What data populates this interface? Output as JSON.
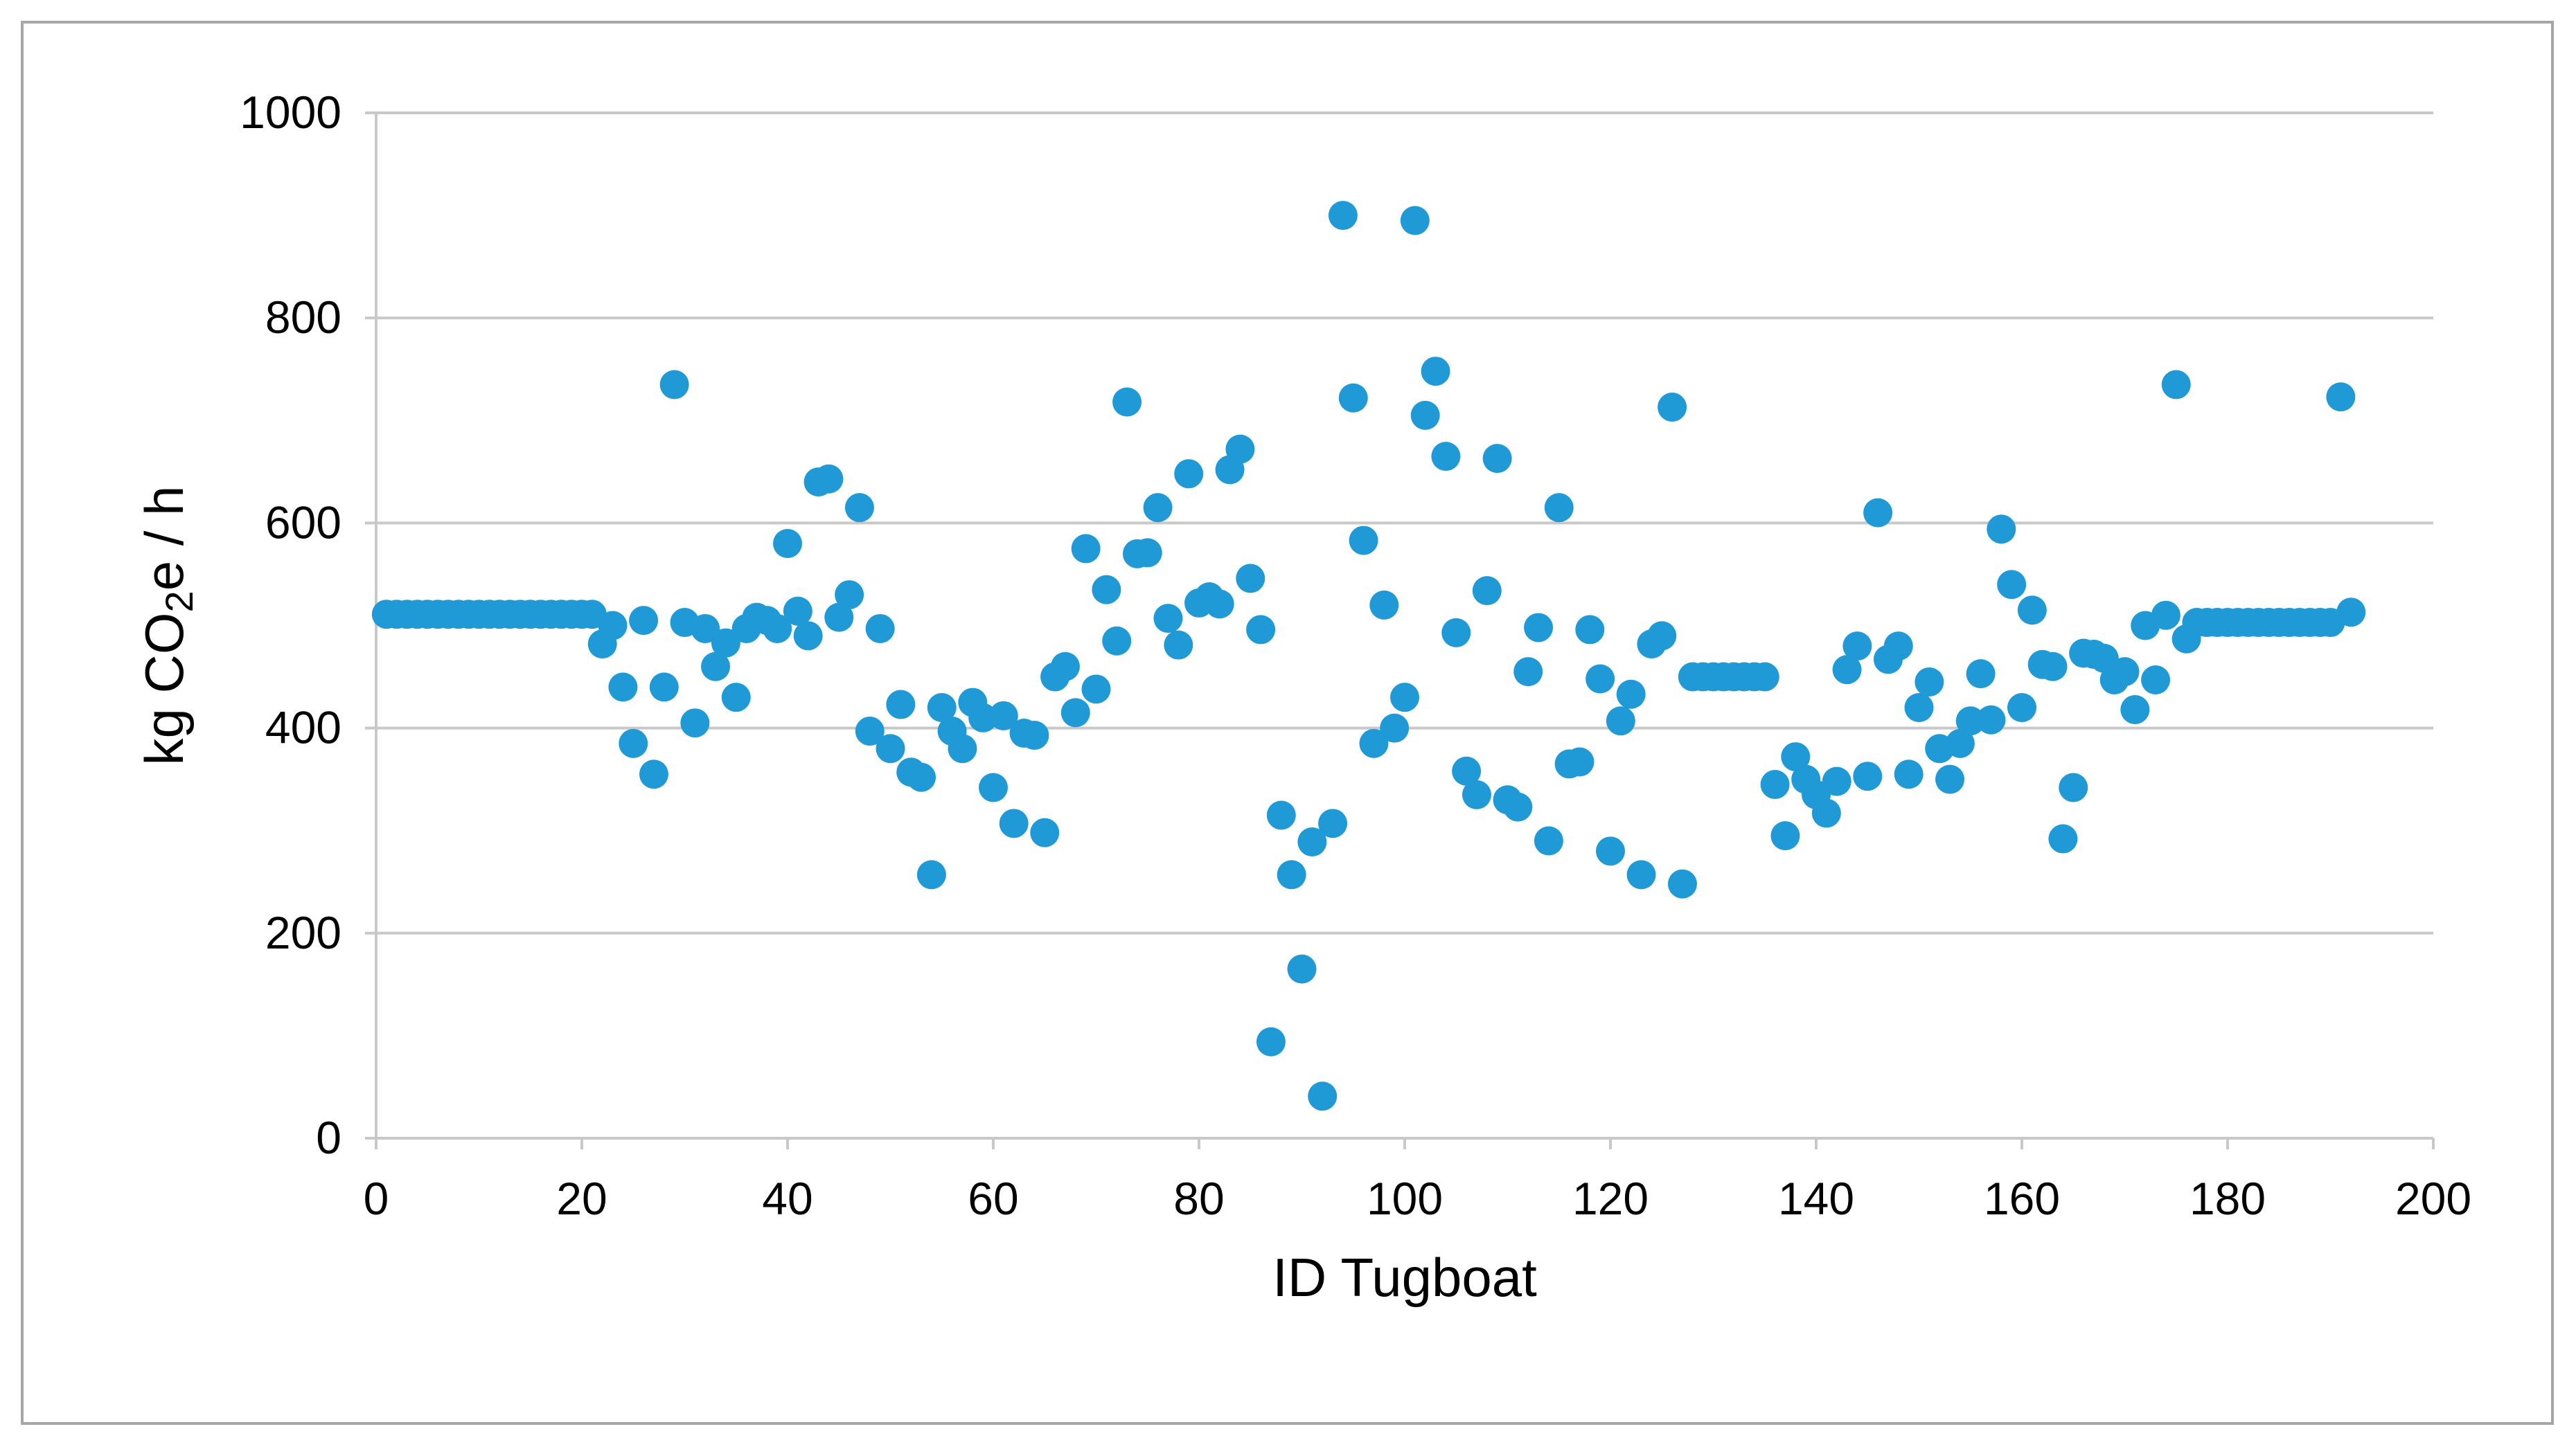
{
  "chart_data": {
    "type": "scatter",
    "title": "",
    "xlabel": "ID Tugboat",
    "ylabel_parts": {
      "prefix": "kg CO",
      "subscript": "2",
      "suffix": "e / h"
    },
    "xlim": [
      0,
      200
    ],
    "ylim": [
      0,
      1000
    ],
    "xticks": [
      0,
      20,
      40,
      60,
      80,
      100,
      120,
      140,
      160,
      180,
      200
    ],
    "yticks": [
      0,
      200,
      400,
      600,
      800,
      1000
    ],
    "grid": "horizontal",
    "legend": "none",
    "marker_color": "#1f9ad6",
    "series": [
      {
        "points": [
          [
            1,
            511
          ],
          [
            2,
            511
          ],
          [
            3,
            511
          ],
          [
            4,
            511
          ],
          [
            5,
            511
          ],
          [
            6,
            511
          ],
          [
            7,
            511
          ],
          [
            8,
            511
          ],
          [
            9,
            511
          ],
          [
            10,
            511
          ],
          [
            11,
            511
          ],
          [
            12,
            511
          ],
          [
            13,
            511
          ],
          [
            14,
            511
          ],
          [
            15,
            511
          ],
          [
            16,
            511
          ],
          [
            17,
            511
          ],
          [
            18,
            511
          ],
          [
            19,
            511
          ],
          [
            20,
            511
          ],
          [
            21,
            511
          ],
          [
            22,
            482
          ],
          [
            23,
            500
          ],
          [
            24,
            440
          ],
          [
            25,
            385
          ],
          [
            26,
            505
          ],
          [
            27,
            355
          ],
          [
            28,
            440
          ],
          [
            29,
            735
          ],
          [
            30,
            503
          ],
          [
            31,
            405
          ],
          [
            32,
            497
          ],
          [
            33,
            460
          ],
          [
            34,
            483
          ],
          [
            35,
            430
          ],
          [
            36,
            497
          ],
          [
            37,
            508
          ],
          [
            38,
            505
          ],
          [
            39,
            497
          ],
          [
            40,
            580
          ],
          [
            41,
            514
          ],
          [
            42,
            490
          ],
          [
            43,
            640
          ],
          [
            44,
            643
          ],
          [
            45,
            508
          ],
          [
            46,
            530
          ],
          [
            47,
            615
          ],
          [
            48,
            397
          ],
          [
            49,
            497
          ],
          [
            50,
            380
          ],
          [
            51,
            423
          ],
          [
            52,
            357
          ],
          [
            53,
            352
          ],
          [
            54,
            257
          ],
          [
            55,
            420
          ],
          [
            56,
            397
          ],
          [
            57,
            380
          ],
          [
            58,
            425
          ],
          [
            59,
            410
          ],
          [
            60,
            342
          ],
          [
            61,
            412
          ],
          [
            62,
            307
          ],
          [
            63,
            395
          ],
          [
            64,
            393
          ],
          [
            65,
            298
          ],
          [
            66,
            450
          ],
          [
            67,
            460
          ],
          [
            68,
            415
          ],
          [
            69,
            575
          ],
          [
            70,
            438
          ],
          [
            71,
            535
          ],
          [
            72,
            485
          ],
          [
            73,
            718
          ],
          [
            74,
            570
          ],
          [
            75,
            571
          ],
          [
            76,
            615
          ],
          [
            77,
            507
          ],
          [
            78,
            481
          ],
          [
            79,
            648
          ],
          [
            80,
            522
          ],
          [
            81,
            528
          ],
          [
            82,
            521
          ],
          [
            83,
            652
          ],
          [
            84,
            672
          ],
          [
            85,
            546
          ],
          [
            86,
            496
          ],
          [
            87,
            94
          ],
          [
            88,
            315
          ],
          [
            89,
            257
          ],
          [
            90,
            165
          ],
          [
            91,
            289
          ],
          [
            92,
            41
          ],
          [
            93,
            307
          ],
          [
            94,
            900
          ],
          [
            95,
            722
          ],
          [
            96,
            583
          ],
          [
            97,
            385
          ],
          [
            98,
            520
          ],
          [
            99,
            400
          ],
          [
            100,
            430
          ],
          [
            101,
            895
          ],
          [
            102,
            705
          ],
          [
            103,
            748
          ],
          [
            104,
            665
          ],
          [
            105,
            493
          ],
          [
            106,
            358
          ],
          [
            107,
            335
          ],
          [
            108,
            534
          ],
          [
            109,
            663
          ],
          [
            110,
            330
          ],
          [
            111,
            323
          ],
          [
            112,
            455
          ],
          [
            113,
            498
          ],
          [
            114,
            290
          ],
          [
            115,
            615
          ],
          [
            116,
            365
          ],
          [
            117,
            367
          ],
          [
            118,
            496
          ],
          [
            119,
            448
          ],
          [
            120,
            280
          ],
          [
            121,
            407
          ],
          [
            122,
            433
          ],
          [
            123,
            257
          ],
          [
            124,
            482
          ],
          [
            125,
            490
          ],
          [
            126,
            713
          ],
          [
            127,
            248
          ],
          [
            128,
            450
          ],
          [
            129,
            450
          ],
          [
            130,
            450
          ],
          [
            131,
            450
          ],
          [
            132,
            450
          ],
          [
            133,
            450
          ],
          [
            134,
            450
          ],
          [
            135,
            450
          ],
          [
            136,
            345
          ],
          [
            137,
            295
          ],
          [
            138,
            372
          ],
          [
            139,
            350
          ],
          [
            140,
            335
          ],
          [
            141,
            317
          ],
          [
            142,
            348
          ],
          [
            143,
            457
          ],
          [
            144,
            480
          ],
          [
            145,
            353
          ],
          [
            146,
            610
          ],
          [
            147,
            467
          ],
          [
            148,
            480
          ],
          [
            149,
            355
          ],
          [
            150,
            420
          ],
          [
            151,
            445
          ],
          [
            152,
            380
          ],
          [
            153,
            350
          ],
          [
            154,
            385
          ],
          [
            155,
            407
          ],
          [
            156,
            453
          ],
          [
            157,
            408
          ],
          [
            158,
            594
          ],
          [
            159,
            540
          ],
          [
            160,
            420
          ],
          [
            161,
            515
          ],
          [
            162,
            462
          ],
          [
            163,
            460
          ],
          [
            164,
            292
          ],
          [
            165,
            342
          ],
          [
            166,
            473
          ],
          [
            167,
            472
          ],
          [
            168,
            468
          ],
          [
            169,
            447
          ],
          [
            170,
            455
          ],
          [
            171,
            418
          ],
          [
            172,
            500
          ],
          [
            173,
            447
          ],
          [
            174,
            510
          ],
          [
            175,
            735
          ],
          [
            176,
            487
          ],
          [
            177,
            503
          ],
          [
            178,
            503
          ],
          [
            179,
            503
          ],
          [
            180,
            503
          ],
          [
            181,
            503
          ],
          [
            182,
            503
          ],
          [
            183,
            503
          ],
          [
            184,
            503
          ],
          [
            185,
            503
          ],
          [
            186,
            503
          ],
          [
            187,
            503
          ],
          [
            188,
            503
          ],
          [
            189,
            503
          ],
          [
            190,
            503
          ],
          [
            191,
            723
          ],
          [
            192,
            513
          ]
        ]
      }
    ]
  }
}
